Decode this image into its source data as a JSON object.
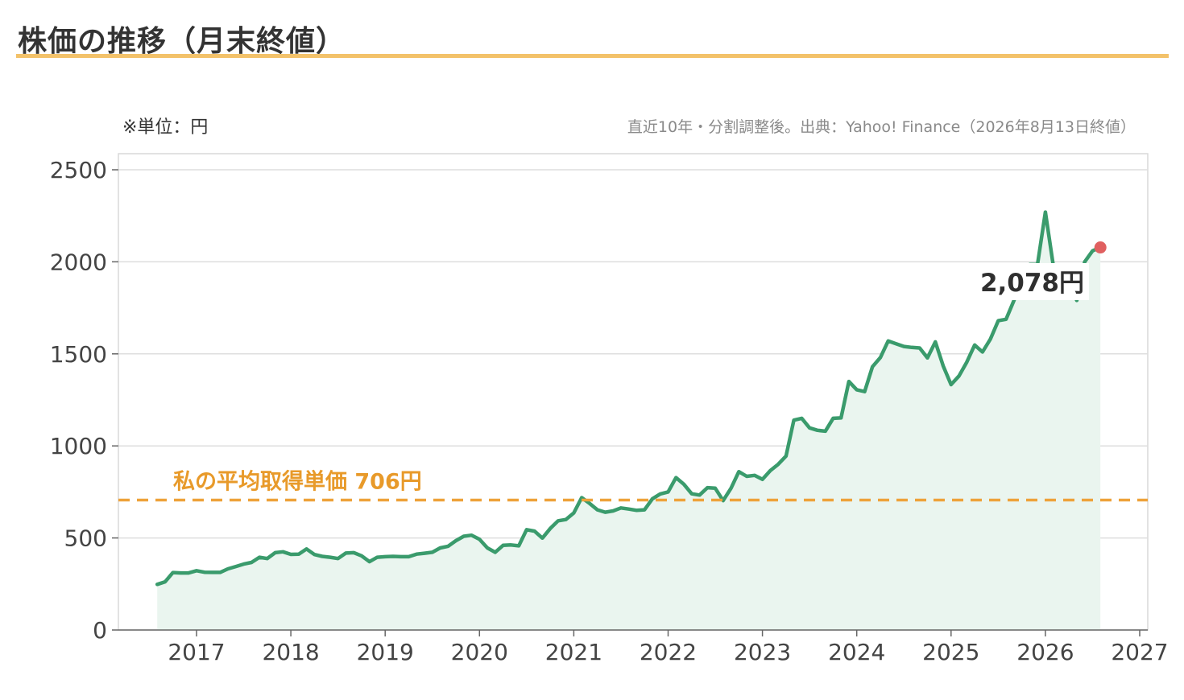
{
  "header": {
    "title": "株価の推移（月末終値）",
    "unit_note": "※単位：円",
    "source_note": "直近10年・分割調整後。出典：Yahoo! Finance（2026年8月13日終値）"
  },
  "colors": {
    "accent_rule": "#f3c26a",
    "line": "#3a9b6c",
    "area": "#eaf5ef",
    "average_line": "#eea23a",
    "last_point": "#e06060"
  },
  "chart_data": {
    "type": "line",
    "title": "株価の推移（月末終値）",
    "xlabel": "",
    "ylabel": "",
    "unit": "円",
    "xlim": [
      2016.0,
      2027.0
    ],
    "ylim": [
      0,
      2500
    ],
    "x_ticks": [
      "2017",
      "2018",
      "2019",
      "2020",
      "2021",
      "2022",
      "2023",
      "2024",
      "2025",
      "2026",
      "2027"
    ],
    "y_ticks": [
      "0",
      "500",
      "1000",
      "1500",
      "2000",
      "2500"
    ],
    "grid": true,
    "series": [
      {
        "x": [
          "2016-08",
          "2016-09",
          "2016-10",
          "2016-11",
          "2016-12",
          "2017-01",
          "2017-02",
          "2017-03",
          "2017-04",
          "2017-05",
          "2017-06",
          "2017-07",
          "2017-08",
          "2017-09",
          "2017-10",
          "2017-11",
          "2017-12",
          "2018-01",
          "2018-02",
          "2018-03",
          "2018-04",
          "2018-05",
          "2018-06",
          "2018-07",
          "2018-08",
          "2018-09",
          "2018-10",
          "2018-11",
          "2018-12",
          "2019-01",
          "2019-02",
          "2019-03",
          "2019-04",
          "2019-05",
          "2019-06",
          "2019-07",
          "2019-08",
          "2019-09",
          "2019-10",
          "2019-11",
          "2019-12",
          "2020-01",
          "2020-02",
          "2020-03",
          "2020-04",
          "2020-05",
          "2020-06",
          "2020-07",
          "2020-08",
          "2020-09",
          "2020-10",
          "2020-11",
          "2020-12",
          "2021-01",
          "2021-02",
          "2021-03",
          "2021-04",
          "2021-05",
          "2021-06",
          "2021-07",
          "2021-08",
          "2021-09",
          "2021-10",
          "2021-11",
          "2021-12",
          "2022-01",
          "2022-02",
          "2022-03",
          "2022-04",
          "2022-05",
          "2022-06",
          "2022-07",
          "2022-08",
          "2022-09",
          "2022-10",
          "2022-11",
          "2022-12",
          "2023-01",
          "2023-02",
          "2023-03",
          "2023-04",
          "2023-05",
          "2023-06",
          "2023-07",
          "2023-08",
          "2023-09",
          "2023-10",
          "2023-11",
          "2023-12",
          "2024-01",
          "2024-02",
          "2024-03",
          "2024-04",
          "2024-05",
          "2024-06",
          "2024-07",
          "2024-08",
          "2024-09",
          "2024-10",
          "2024-11",
          "2024-12",
          "2025-01",
          "2025-02",
          "2025-03",
          "2025-04",
          "2025-05",
          "2025-06",
          "2025-07",
          "2025-08",
          "2025-09",
          "2025-10",
          "2025-11",
          "2025-12",
          "2026-01",
          "2026-02",
          "2026-03",
          "2026-04",
          "2026-05",
          "2026-06",
          "2026-07",
          "2026-08"
        ],
        "values": [
          248,
          262,
          312,
          310,
          310,
          322,
          314,
          313,
          313,
          332,
          345,
          358,
          367,
          395,
          388,
          420,
          425,
          411,
          412,
          440,
          410,
          400,
          395,
          388,
          418,
          420,
          403,
          371,
          395,
          398,
          400,
          398,
          398,
          412,
          417,
          422,
          446,
          455,
          485,
          509,
          515,
          493,
          446,
          422,
          460,
          462,
          457,
          545,
          537,
          499,
          551,
          593,
          600,
          636,
          719,
          688,
          653,
          640,
          647,
          663,
          657,
          650,
          653,
          713,
          739,
          750,
          828,
          792,
          740,
          733,
          773,
          770,
          703,
          770,
          860,
          835,
          840,
          818,
          866,
          900,
          945,
          1140,
          1150,
          1098,
          1085,
          1080,
          1150,
          1152,
          1350,
          1305,
          1295,
          1430,
          1480,
          1570,
          1555,
          1540,
          1535,
          1532,
          1478,
          1565,
          1435,
          1333,
          1380,
          1455,
          1548,
          1510,
          1580,
          1680,
          1688,
          1790,
          1895,
          1985,
          1985,
          2270,
          1980,
          1975,
          1880,
          1790,
          2000,
          2060,
          2078
        ]
      }
    ],
    "reference_line": {
      "value": 706,
      "label": "私の平均取得単価 706円"
    },
    "last_point_label": "2,078円",
    "legend": "none"
  }
}
